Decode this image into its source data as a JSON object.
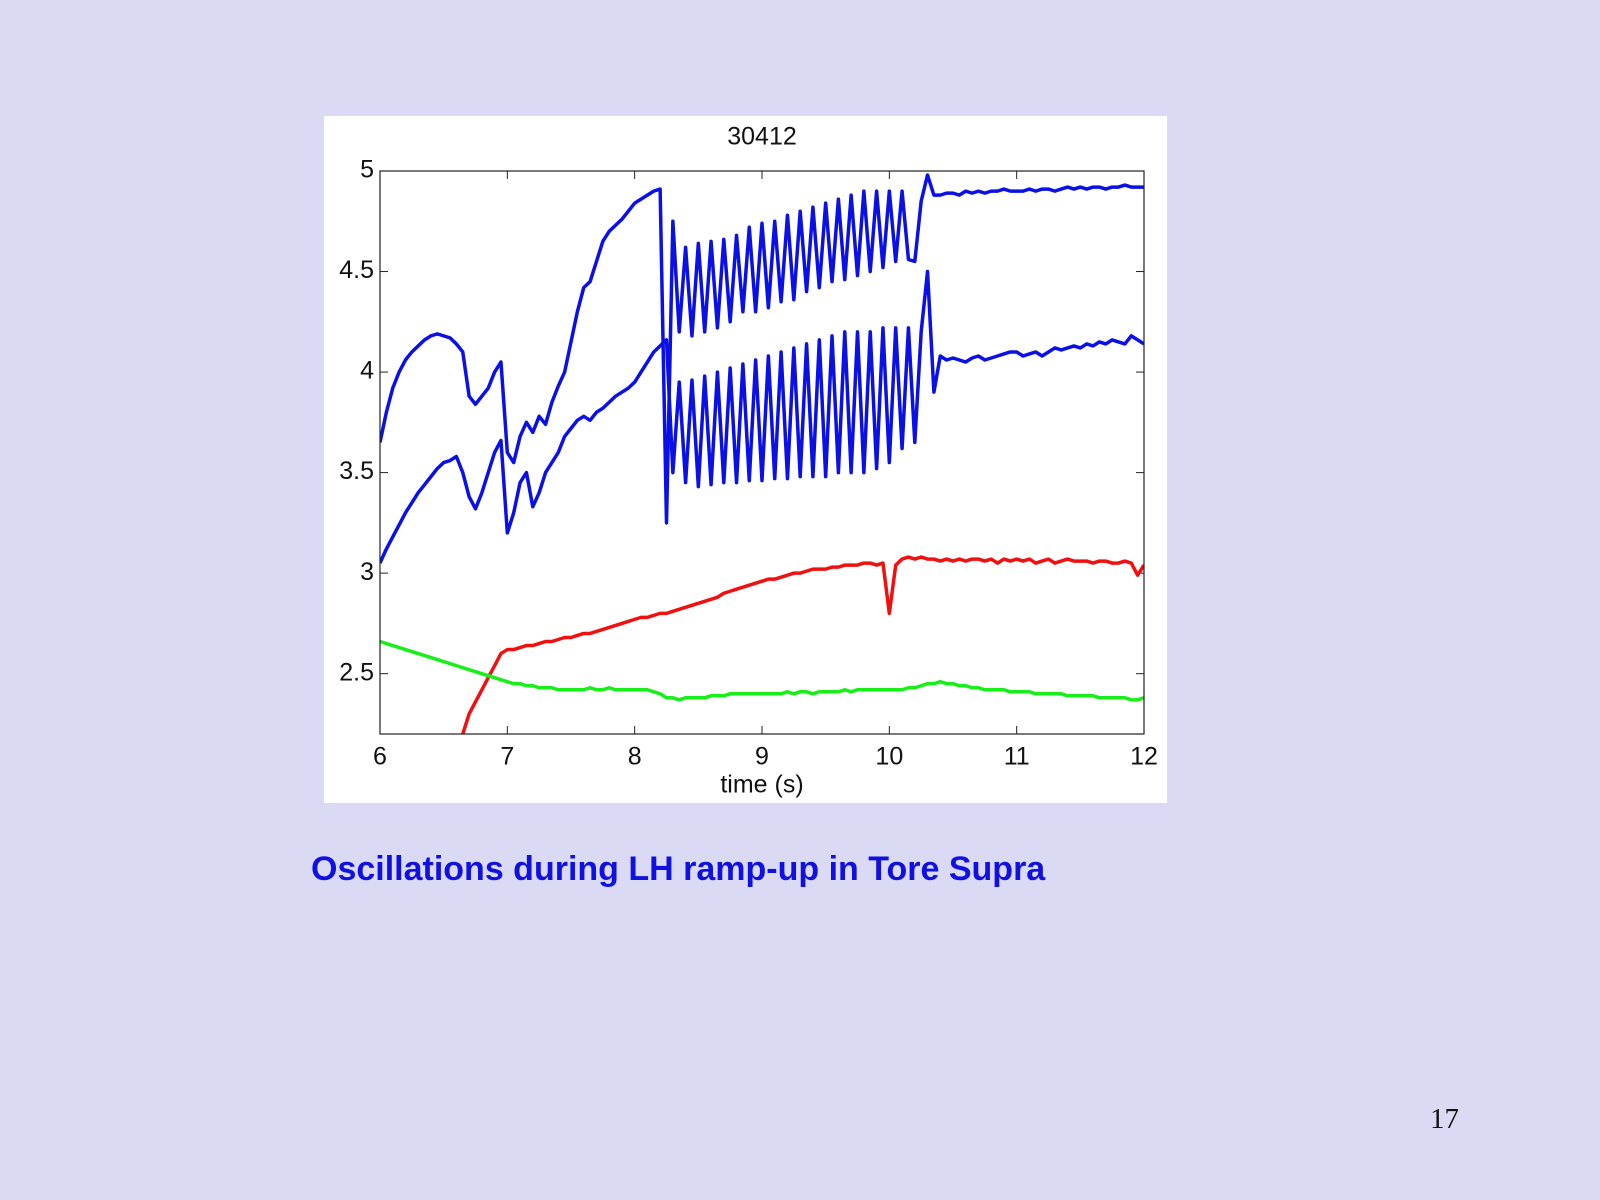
{
  "chart_data": {
    "type": "line",
    "title": "30412",
    "xlabel": "time (s)",
    "x": [
      6,
      6.05,
      6.1,
      6.15,
      6.2,
      6.25,
      6.3,
      6.35,
      6.4,
      6.45,
      6.5,
      6.55,
      6.6,
      6.65,
      6.7,
      6.75,
      6.8,
      6.85,
      6.9,
      6.95,
      7,
      7.05,
      7.1,
      7.15,
      7.2,
      7.25,
      7.3,
      7.35,
      7.4,
      7.45,
      7.5,
      7.55,
      7.6,
      7.65,
      7.7,
      7.75,
      7.8,
      7.85,
      7.9,
      7.95,
      8,
      8.05,
      8.1,
      8.15,
      8.2,
      8.25,
      8.3,
      8.35,
      8.4,
      8.45,
      8.5,
      8.55,
      8.6,
      8.65,
      8.7,
      8.75,
      8.8,
      8.85,
      8.9,
      8.95,
      9,
      9.05,
      9.1,
      9.15,
      9.2,
      9.25,
      9.3,
      9.35,
      9.4,
      9.45,
      9.5,
      9.55,
      9.6,
      9.65,
      9.7,
      9.75,
      9.8,
      9.85,
      9.9,
      9.95,
      10,
      10.05,
      10.1,
      10.15,
      10.2,
      10.25,
      10.3,
      10.35,
      10.4,
      10.45,
      10.5,
      10.55,
      10.6,
      10.65,
      10.7,
      10.75,
      10.8,
      10.85,
      10.9,
      10.95,
      11,
      11.05,
      11.1,
      11.15,
      11.2,
      11.25,
      11.3,
      11.35,
      11.4,
      11.45,
      11.5,
      11.55,
      11.6,
      11.65,
      11.7,
      11.75,
      11.8,
      11.85,
      11.9,
      11.95,
      12
    ],
    "series": [
      {
        "color": "#0a10e6",
        "values": [
          3.65,
          3.8,
          3.92,
          4.0,
          4.06,
          4.1,
          4.13,
          4.16,
          4.18,
          4.19,
          4.18,
          4.17,
          4.14,
          4.1,
          3.88,
          3.84,
          3.88,
          3.92,
          4.0,
          4.05,
          3.6,
          3.55,
          3.68,
          3.75,
          3.7,
          3.78,
          3.74,
          3.85,
          3.93,
          4.0,
          4.15,
          4.3,
          4.42,
          4.45,
          4.55,
          4.65,
          4.7,
          4.73,
          4.76,
          4.8,
          4.84,
          4.86,
          4.88,
          4.9,
          4.91,
          3.25,
          4.75,
          4.2,
          4.62,
          4.18,
          4.64,
          4.2,
          4.65,
          4.22,
          4.66,
          4.25,
          4.68,
          4.3,
          4.72,
          4.3,
          4.74,
          4.32,
          4.75,
          4.35,
          4.78,
          4.36,
          4.8,
          4.4,
          4.82,
          4.42,
          4.84,
          4.45,
          4.86,
          4.46,
          4.88,
          4.48,
          4.9,
          4.5,
          4.9,
          4.52,
          4.9,
          4.55,
          4.9,
          4.56,
          4.55,
          4.85,
          4.98,
          4.88,
          4.88,
          4.89,
          4.89,
          4.88,
          4.9,
          4.89,
          4.9,
          4.89,
          4.9,
          4.9,
          4.91,
          4.9,
          4.9,
          4.9,
          4.91,
          4.9,
          4.91,
          4.91,
          4.9,
          4.91,
          4.92,
          4.91,
          4.92,
          4.91,
          4.92,
          4.92,
          4.91,
          4.92,
          4.92,
          4.93,
          4.92,
          4.92,
          4.92
        ]
      },
      {
        "color": "#0a10e6",
        "values": [
          3.05,
          3.12,
          3.18,
          3.24,
          3.3,
          3.35,
          3.4,
          3.44,
          3.48,
          3.52,
          3.55,
          3.56,
          3.58,
          3.5,
          3.38,
          3.32,
          3.4,
          3.5,
          3.6,
          3.66,
          3.2,
          3.3,
          3.45,
          3.5,
          3.33,
          3.4,
          3.5,
          3.55,
          3.6,
          3.68,
          3.72,
          3.76,
          3.78,
          3.76,
          3.8,
          3.82,
          3.85,
          3.88,
          3.9,
          3.92,
          3.95,
          4.0,
          4.05,
          4.1,
          4.13,
          4.16,
          3.5,
          3.95,
          3.45,
          3.96,
          3.43,
          3.98,
          3.44,
          4.0,
          3.45,
          4.02,
          3.45,
          4.04,
          3.46,
          4.06,
          3.46,
          4.08,
          3.47,
          4.1,
          3.47,
          4.12,
          3.48,
          4.14,
          3.48,
          4.16,
          3.48,
          4.18,
          3.5,
          4.2,
          3.5,
          4.2,
          3.5,
          4.2,
          3.52,
          4.22,
          3.55,
          4.22,
          3.62,
          4.22,
          3.65,
          4.2,
          4.5,
          3.9,
          4.08,
          4.06,
          4.07,
          4.06,
          4.05,
          4.07,
          4.08,
          4.06,
          4.07,
          4.08,
          4.09,
          4.1,
          4.1,
          4.08,
          4.09,
          4.1,
          4.08,
          4.1,
          4.12,
          4.11,
          4.12,
          4.13,
          4.12,
          4.14,
          4.13,
          4.15,
          4.14,
          4.16,
          4.15,
          4.14,
          4.18,
          4.16,
          4.14
        ]
      },
      {
        "color": "#f01010",
        "values": [
          null,
          null,
          null,
          null,
          null,
          null,
          null,
          null,
          null,
          null,
          null,
          null,
          null,
          2.2,
          2.3,
          2.36,
          2.42,
          2.48,
          2.54,
          2.6,
          2.62,
          2.62,
          2.63,
          2.64,
          2.64,
          2.65,
          2.66,
          2.66,
          2.67,
          2.68,
          2.68,
          2.69,
          2.7,
          2.7,
          2.71,
          2.72,
          2.73,
          2.74,
          2.75,
          2.76,
          2.77,
          2.78,
          2.78,
          2.79,
          2.8,
          2.8,
          2.81,
          2.82,
          2.83,
          2.84,
          2.85,
          2.86,
          2.87,
          2.88,
          2.9,
          2.91,
          2.92,
          2.93,
          2.94,
          2.95,
          2.96,
          2.97,
          2.97,
          2.98,
          2.99,
          3.0,
          3.0,
          3.01,
          3.02,
          3.02,
          3.02,
          3.03,
          3.03,
          3.04,
          3.04,
          3.04,
          3.05,
          3.05,
          3.04,
          3.05,
          2.8,
          3.04,
          3.07,
          3.08,
          3.07,
          3.08,
          3.07,
          3.07,
          3.06,
          3.07,
          3.06,
          3.07,
          3.06,
          3.07,
          3.07,
          3.06,
          3.07,
          3.05,
          3.07,
          3.06,
          3.07,
          3.06,
          3.07,
          3.05,
          3.06,
          3.07,
          3.05,
          3.06,
          3.07,
          3.06,
          3.06,
          3.06,
          3.05,
          3.06,
          3.06,
          3.05,
          3.05,
          3.06,
          3.05,
          2.99,
          3.04
        ]
      },
      {
        "color": "#18ee18",
        "values": [
          2.66,
          2.65,
          2.64,
          2.63,
          2.62,
          2.61,
          2.6,
          2.59,
          2.58,
          2.57,
          2.56,
          2.55,
          2.54,
          2.53,
          2.52,
          2.51,
          2.5,
          2.49,
          2.48,
          2.47,
          2.46,
          2.45,
          2.45,
          2.44,
          2.44,
          2.43,
          2.43,
          2.43,
          2.42,
          2.42,
          2.42,
          2.42,
          2.42,
          2.43,
          2.42,
          2.42,
          2.43,
          2.42,
          2.42,
          2.42,
          2.42,
          2.42,
          2.42,
          2.41,
          2.4,
          2.38,
          2.38,
          2.37,
          2.38,
          2.38,
          2.38,
          2.38,
          2.39,
          2.39,
          2.39,
          2.4,
          2.4,
          2.4,
          2.4,
          2.4,
          2.4,
          2.4,
          2.4,
          2.4,
          2.41,
          2.4,
          2.41,
          2.41,
          2.4,
          2.41,
          2.41,
          2.41,
          2.41,
          2.42,
          2.41,
          2.42,
          2.42,
          2.42,
          2.42,
          2.42,
          2.42,
          2.42,
          2.42,
          2.43,
          2.43,
          2.44,
          2.45,
          2.45,
          2.46,
          2.45,
          2.45,
          2.44,
          2.44,
          2.43,
          2.43,
          2.42,
          2.42,
          2.42,
          2.42,
          2.41,
          2.41,
          2.41,
          2.41,
          2.4,
          2.4,
          2.4,
          2.4,
          2.4,
          2.39,
          2.39,
          2.39,
          2.39,
          2.39,
          2.38,
          2.38,
          2.38,
          2.38,
          2.38,
          2.37,
          2.37,
          2.38
        ]
      }
    ],
    "xlim": [
      6,
      12
    ],
    "xticks": [
      6,
      7,
      8,
      9,
      10,
      11,
      12
    ],
    "ylim": [
      2.2,
      5
    ],
    "yticks": [
      2.5,
      3,
      3.5,
      4,
      4.5,
      5
    ],
    "grid": false
  },
  "caption": "Oscillations during LH ramp-up in Tore Supra",
  "page_number": "17"
}
